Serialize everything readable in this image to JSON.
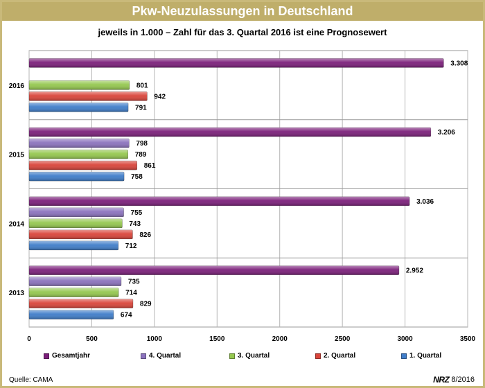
{
  "title": "Pkw-Neuzulassungen in Deutschland",
  "subtitle": "jeweils in 1.000 – Zahl für das 3. Quartal 2016 ist eine Prognosewert",
  "source": "Quelle: CAMA",
  "credit_logo": "NRZ",
  "credit_date": "8/2016",
  "colors": {
    "gesamtjahr": "#7b1f7a",
    "q4": "#8b72bd",
    "q3": "#94c74e",
    "q2": "#d9443a",
    "q1": "#3f7dc9",
    "title_bar": "#bfae6a"
  },
  "chart_data": {
    "type": "bar",
    "orientation": "horizontal",
    "categories": [
      "2016",
      "2015",
      "2014",
      "2013"
    ],
    "series": [
      {
        "name": "Gesamtjahr",
        "values": [
          3308,
          3206,
          3036,
          2952
        ],
        "labels": [
          "3.308",
          "3.206",
          "3.036",
          "2.952"
        ]
      },
      {
        "name": "4. Quartal",
        "values": [
          null,
          798,
          755,
          735
        ],
        "labels": [
          "",
          "798",
          "755",
          "735"
        ]
      },
      {
        "name": "3. Quartal",
        "values": [
          801,
          789,
          743,
          714
        ],
        "labels": [
          "801",
          "789",
          "743",
          "714"
        ]
      },
      {
        "name": "2. Quartal",
        "values": [
          942,
          861,
          826,
          829
        ],
        "labels": [
          "942",
          "861",
          "826",
          "829"
        ]
      },
      {
        "name": "1. Quartal",
        "values": [
          791,
          758,
          712,
          674
        ],
        "labels": [
          "791",
          "758",
          "712",
          "674"
        ]
      }
    ],
    "xlim": [
      0,
      3500
    ],
    "xticks": [
      0,
      500,
      1000,
      1500,
      2000,
      2500,
      3000,
      3500
    ],
    "grid": true,
    "legend_position": "bottom"
  }
}
